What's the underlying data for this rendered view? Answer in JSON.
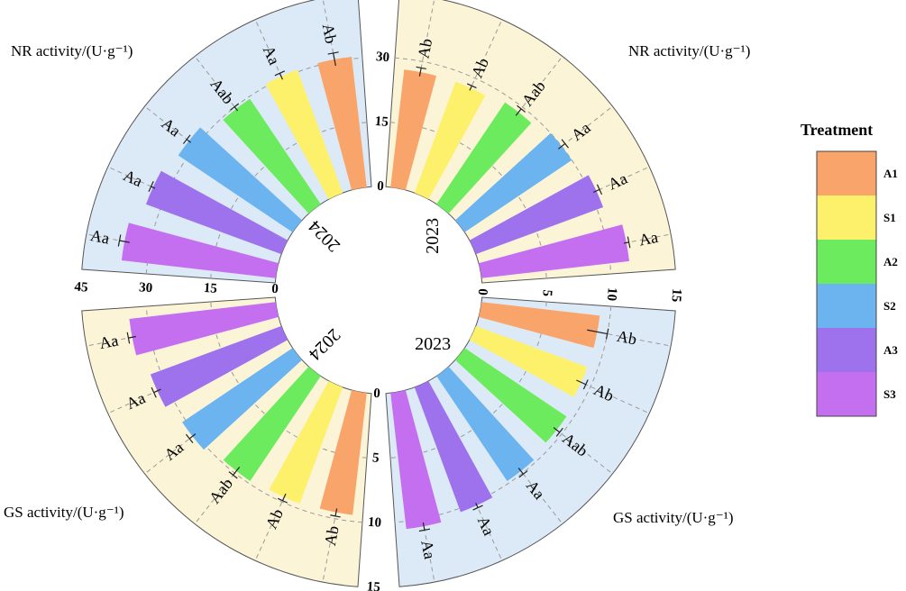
{
  "legend": {
    "title": "Treatment",
    "items": [
      {
        "name": "A1",
        "color": "#F9A46A"
      },
      {
        "name": "S1",
        "color": "#FDF06A"
      },
      {
        "name": "A2",
        "color": "#6CEB5E"
      },
      {
        "name": "S2",
        "color": "#6CB4F0"
      },
      {
        "name": "A3",
        "color": "#9D72EC"
      },
      {
        "name": "S3",
        "color": "#C46FF0"
      }
    ]
  },
  "chart_data": [
    {
      "type": "bar",
      "title": "NR activity/(U·g⁻¹)",
      "year": "2024",
      "categories": [
        "A1",
        "S1",
        "A2",
        "S2",
        "A3",
        "S3"
      ],
      "values": [
        30.5,
        30.5,
        29.5,
        32.0,
        33.5,
        36.0
      ],
      "error": [
        1.5,
        0.8,
        0.6,
        0.6,
        0.5,
        1.2
      ],
      "letters": [
        "Ab",
        "Aa",
        "Aab",
        "Aa",
        "Aa",
        "Aa"
      ],
      "ylim": [
        0,
        45
      ],
      "ticks": [
        "0",
        "15",
        "30",
        "45"
      ],
      "background": "#DCEAF7"
    },
    {
      "type": "bar",
      "title": "NR activity/(U·g⁻¹)",
      "year": "2023",
      "categories": [
        "A1",
        "S1",
        "A2",
        "S2",
        "A3",
        "S3"
      ],
      "values": [
        27.5,
        27.5,
        28.5,
        30.0,
        31.5,
        34.5
      ],
      "error": [
        1.0,
        0.6,
        1.0,
        1.0,
        0.8,
        0.6
      ],
      "letters": [
        "Ab",
        "Ab",
        "Aab",
        "Aa",
        "Aa",
        "Aa"
      ],
      "ylim": [
        0,
        45
      ],
      "ticks": [
        "0",
        "15",
        "30",
        "45"
      ],
      "background": "#FBF4D6"
    },
    {
      "type": "bar",
      "title": "GS activity/(U·g⁻¹)",
      "year": "2023",
      "categories": [
        "A1",
        "S1",
        "A2",
        "S2",
        "A3",
        "S3"
      ],
      "values": [
        9.2,
        9.2,
        9.5,
        9.8,
        10.3,
        10.6
      ],
      "error": [
        0.8,
        0.4,
        0.3,
        0.3,
        0.2,
        0.3
      ],
      "letters": [
        "Ab",
        "Ab",
        "Aab",
        "Aa",
        "Aa",
        "Aa"
      ],
      "ylim": [
        0,
        15
      ],
      "ticks": [
        "0",
        "5",
        "10",
        "15"
      ],
      "background": "#DCEAF7"
    },
    {
      "type": "bar",
      "title": "GS activity/(U·g⁻¹)",
      "year": "2024",
      "categories": [
        "A1",
        "S1",
        "A2",
        "S2",
        "A3",
        "S3"
      ],
      "values": [
        9.5,
        9.6,
        9.8,
        10.3,
        10.8,
        11.4
      ],
      "error": [
        0.3,
        0.3,
        0.4,
        0.3,
        0.3,
        0.3
      ],
      "letters": [
        "Ab",
        "Ab",
        "Aab",
        "Aa",
        "Aa",
        "Aa"
      ],
      "ylim": [
        0,
        15
      ],
      "ticks": [
        "0",
        "5",
        "10",
        "15"
      ],
      "background": "#FBF4D6"
    }
  ]
}
